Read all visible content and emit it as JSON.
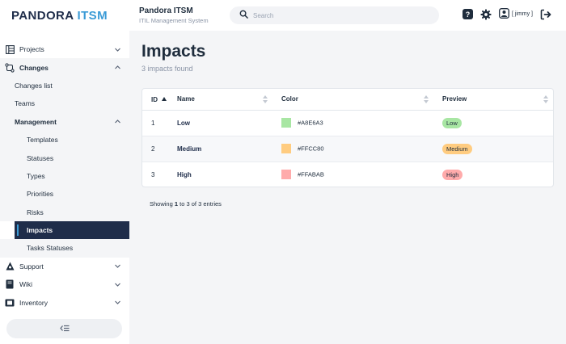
{
  "brand": {
    "name_part1": "PANDORA",
    "name_part2": "ITSM"
  },
  "app": {
    "title": "Pandora ITSM",
    "subtitle": "ITIL Management System"
  },
  "search": {
    "placeholder": "Search",
    "value": ""
  },
  "user": {
    "name": "[ jimmy ]"
  },
  "sidebar": {
    "projects": "Projects",
    "changes": "Changes",
    "changes_list": "Changes list",
    "teams": "Teams",
    "management": "Management",
    "templates": "Templates",
    "statuses": "Statuses",
    "types": "Types",
    "priorities": "Priorities",
    "risks": "Risks",
    "impacts": "Impacts",
    "tasks_statuses": "Tasks Statuses",
    "support": "Support",
    "wiki": "Wiki",
    "inventory": "Inventory"
  },
  "page": {
    "title": "Impacts",
    "subtitle": "3 impacts found"
  },
  "table": {
    "headers": {
      "id": "ID",
      "name": "Name",
      "color": "Color",
      "preview": "Preview"
    },
    "rows": [
      {
        "id": "1",
        "name": "Low",
        "color": "#A8E6A3",
        "preview": "Low"
      },
      {
        "id": "2",
        "name": "Medium",
        "color": "#FFCC80",
        "preview": "Medium"
      },
      {
        "id": "3",
        "name": "High",
        "color": "#FFABAB",
        "preview": "High"
      }
    ]
  },
  "footer": {
    "showing": "Showing",
    "from": "1",
    "to_word": "to",
    "to": "3",
    "of_word": "of",
    "total": "3",
    "entries": "entries"
  },
  "colors": {
    "accent": "#3b9bd6",
    "navy": "#1f2d4a",
    "background": "#f4f5f7"
  }
}
